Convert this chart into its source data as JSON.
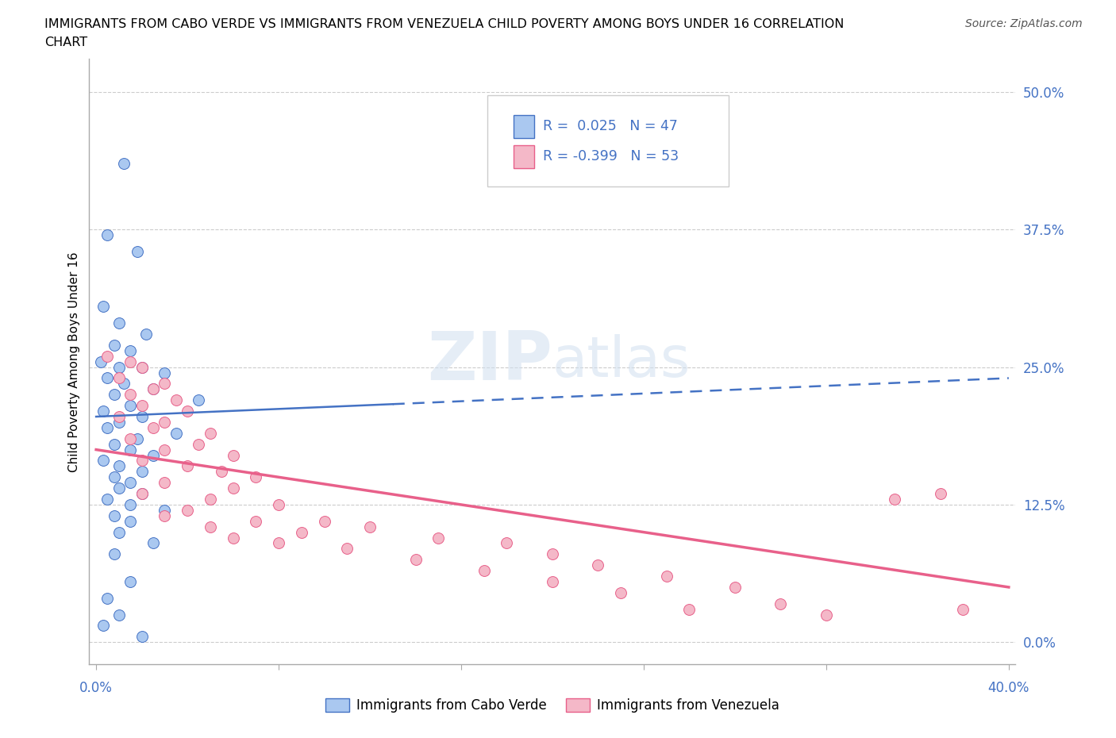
{
  "title_line1": "IMMIGRANTS FROM CABO VERDE VS IMMIGRANTS FROM VENEZUELA CHILD POVERTY AMONG BOYS UNDER 16 CORRELATION",
  "title_line2": "CHART",
  "source": "Source: ZipAtlas.com",
  "ylabel": "Child Poverty Among Boys Under 16",
  "yticks": [
    "0.0%",
    "12.5%",
    "25.0%",
    "37.5%",
    "50.0%"
  ],
  "ytick_vals": [
    0.0,
    12.5,
    25.0,
    37.5,
    50.0
  ],
  "xrange": [
    0.0,
    40.0
  ],
  "yrange": [
    -2.0,
    53.0
  ],
  "cabo_verde_color": "#aac8f0",
  "venezuela_color": "#f4b8c8",
  "cabo_verde_line_color": "#4472c4",
  "venezuela_line_color": "#e8608a",
  "legend_R_cabo": "0.025",
  "legend_N_cabo": "47",
  "legend_R_venezuela": "-0.399",
  "legend_N_venezuela": "53",
  "legend_text_color": "#4472c4",
  "watermark_zip": "ZIP",
  "watermark_atlas": "atlas",
  "cabo_solid_x_end": 13.0,
  "cabo_line_y0": 20.5,
  "cabo_line_y1": 24.0,
  "ven_line_y0": 17.5,
  "ven_line_y1": 5.0,
  "cabo_verde_scatter": [
    [
      1.2,
      43.5
    ],
    [
      0.5,
      37.0
    ],
    [
      1.8,
      35.5
    ],
    [
      0.3,
      30.5
    ],
    [
      1.0,
      29.0
    ],
    [
      2.2,
      28.0
    ],
    [
      0.8,
      27.0
    ],
    [
      1.5,
      26.5
    ],
    [
      0.2,
      25.5
    ],
    [
      1.0,
      25.0
    ],
    [
      2.0,
      25.0
    ],
    [
      3.0,
      24.5
    ],
    [
      0.5,
      24.0
    ],
    [
      1.2,
      23.5
    ],
    [
      2.5,
      23.0
    ],
    [
      0.8,
      22.5
    ],
    [
      4.5,
      22.0
    ],
    [
      1.5,
      21.5
    ],
    [
      0.3,
      21.0
    ],
    [
      2.0,
      20.5
    ],
    [
      1.0,
      20.0
    ],
    [
      0.5,
      19.5
    ],
    [
      3.5,
      19.0
    ],
    [
      1.8,
      18.5
    ],
    [
      0.8,
      18.0
    ],
    [
      1.5,
      17.5
    ],
    [
      2.5,
      17.0
    ],
    [
      0.3,
      16.5
    ],
    [
      1.0,
      16.0
    ],
    [
      2.0,
      15.5
    ],
    [
      0.8,
      15.0
    ],
    [
      1.5,
      14.5
    ],
    [
      1.0,
      14.0
    ],
    [
      2.0,
      13.5
    ],
    [
      0.5,
      13.0
    ],
    [
      1.5,
      12.5
    ],
    [
      3.0,
      12.0
    ],
    [
      0.8,
      11.5
    ],
    [
      1.5,
      11.0
    ],
    [
      1.0,
      10.0
    ],
    [
      2.5,
      9.0
    ],
    [
      0.8,
      8.0
    ],
    [
      1.5,
      5.5
    ],
    [
      0.5,
      4.0
    ],
    [
      1.0,
      2.5
    ],
    [
      0.3,
      1.5
    ],
    [
      2.0,
      0.5
    ]
  ],
  "venezuela_scatter": [
    [
      0.5,
      26.0
    ],
    [
      1.5,
      25.5
    ],
    [
      2.0,
      25.0
    ],
    [
      1.0,
      24.0
    ],
    [
      3.0,
      23.5
    ],
    [
      2.5,
      23.0
    ],
    [
      1.5,
      22.5
    ],
    [
      3.5,
      22.0
    ],
    [
      2.0,
      21.5
    ],
    [
      4.0,
      21.0
    ],
    [
      1.0,
      20.5
    ],
    [
      3.0,
      20.0
    ],
    [
      2.5,
      19.5
    ],
    [
      5.0,
      19.0
    ],
    [
      1.5,
      18.5
    ],
    [
      4.5,
      18.0
    ],
    [
      3.0,
      17.5
    ],
    [
      6.0,
      17.0
    ],
    [
      2.0,
      16.5
    ],
    [
      4.0,
      16.0
    ],
    [
      5.5,
      15.5
    ],
    [
      7.0,
      15.0
    ],
    [
      3.0,
      14.5
    ],
    [
      6.0,
      14.0
    ],
    [
      2.0,
      13.5
    ],
    [
      5.0,
      13.0
    ],
    [
      8.0,
      12.5
    ],
    [
      4.0,
      12.0
    ],
    [
      3.0,
      11.5
    ],
    [
      7.0,
      11.0
    ],
    [
      10.0,
      11.0
    ],
    [
      5.0,
      10.5
    ],
    [
      9.0,
      10.0
    ],
    [
      12.0,
      10.5
    ],
    [
      6.0,
      9.5
    ],
    [
      15.0,
      9.5
    ],
    [
      8.0,
      9.0
    ],
    [
      18.0,
      9.0
    ],
    [
      11.0,
      8.5
    ],
    [
      20.0,
      8.0
    ],
    [
      14.0,
      7.5
    ],
    [
      22.0,
      7.0
    ],
    [
      17.0,
      6.5
    ],
    [
      25.0,
      6.0
    ],
    [
      20.0,
      5.5
    ],
    [
      28.0,
      5.0
    ],
    [
      23.0,
      4.5
    ],
    [
      30.0,
      3.5
    ],
    [
      26.0,
      3.0
    ],
    [
      32.0,
      2.5
    ],
    [
      35.0,
      13.0
    ],
    [
      37.0,
      13.5
    ],
    [
      38.0,
      3.0
    ]
  ]
}
